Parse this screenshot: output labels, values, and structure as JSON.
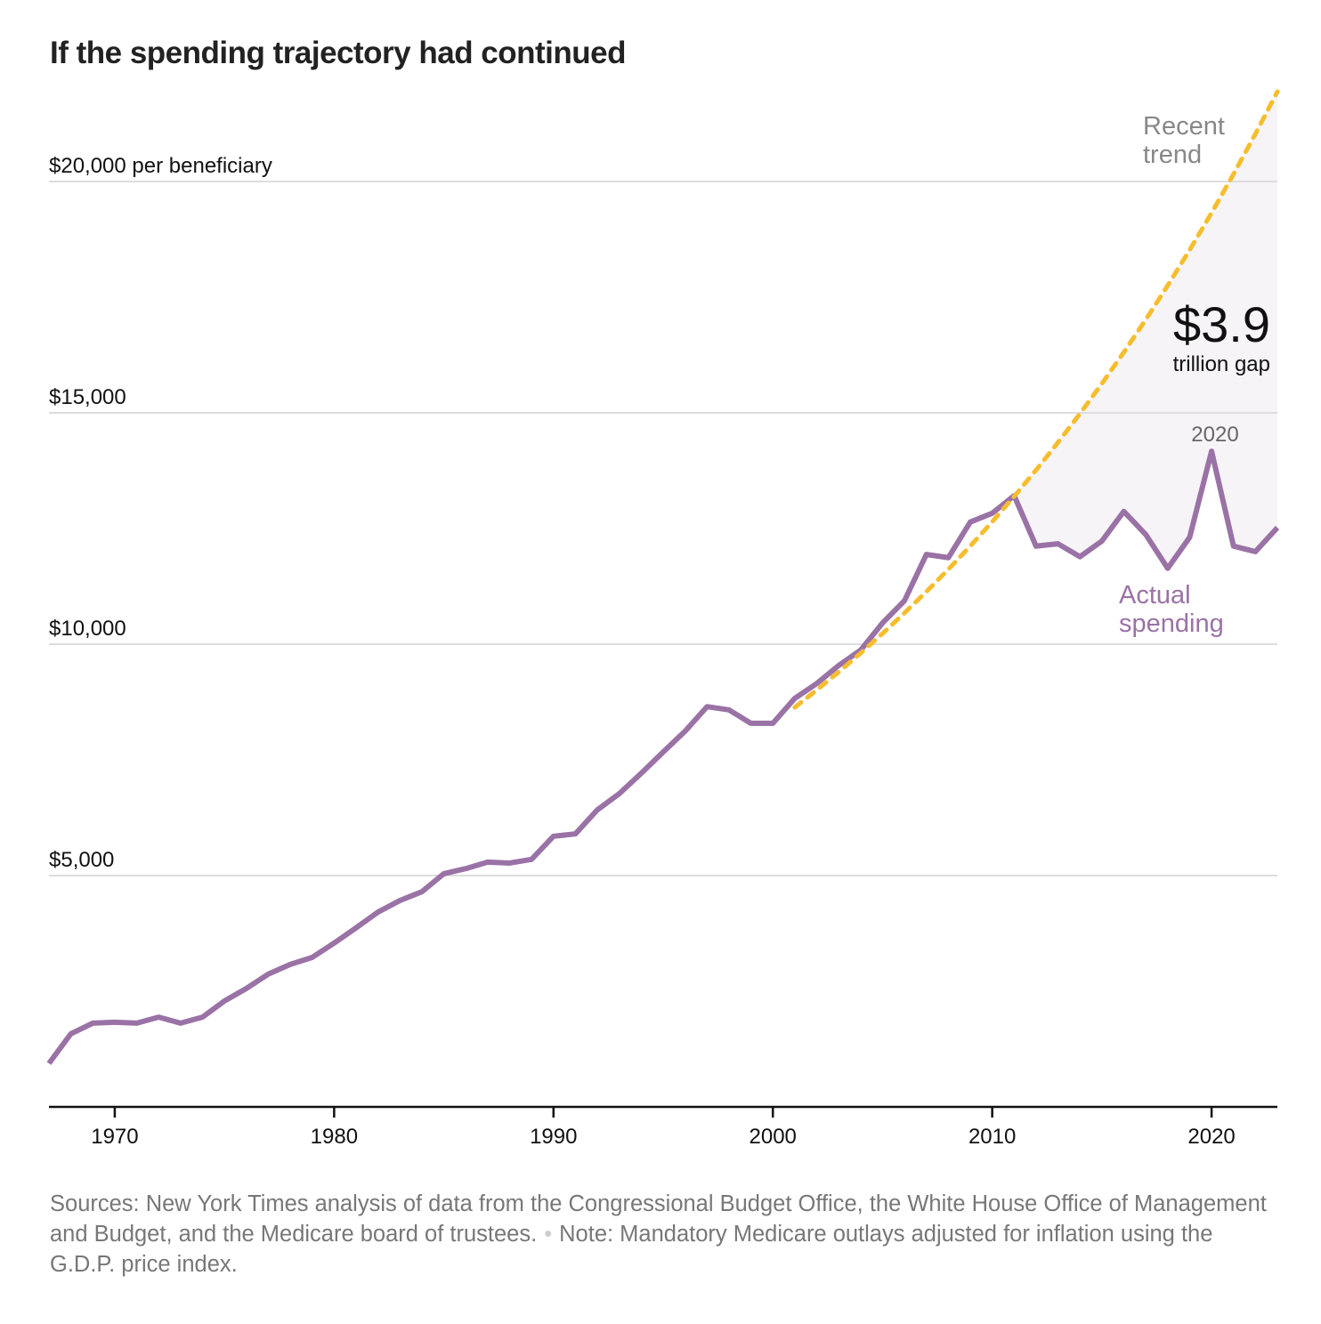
{
  "title": "If the spending trajectory had continued",
  "chart_data": {
    "type": "line",
    "title": "If the spending trajectory had continued",
    "ylabel": "$20,000 per beneficiary",
    "y_ticks": [
      {
        "value": 20000,
        "label": "$20,000 per beneficiary"
      },
      {
        "value": 15000,
        "label": "$15,000"
      },
      {
        "value": 10000,
        "label": "$10,000"
      },
      {
        "value": 5000,
        "label": "$5,000"
      }
    ],
    "x_ticks": [
      {
        "value": 1970,
        "label": "1970"
      },
      {
        "value": 1980,
        "label": "1980"
      },
      {
        "value": 1990,
        "label": "1990"
      },
      {
        "value": 2000,
        "label": "2000"
      },
      {
        "value": 2010,
        "label": "2010"
      },
      {
        "value": 2020,
        "label": "2020"
      }
    ],
    "xlim": [
      1967,
      2023
    ],
    "ylim": [
      0,
      22000
    ],
    "grid": true,
    "series": [
      {
        "name": "Actual spending",
        "color": "#9a72a6",
        "style": "solid",
        "x": [
          1967,
          1968,
          1969,
          1970,
          1971,
          1972,
          1973,
          1974,
          1975,
          1976,
          1977,
          1978,
          1979,
          1980,
          1981,
          1982,
          1983,
          1984,
          1985,
          1986,
          1987,
          1988,
          1989,
          1990,
          1991,
          1992,
          1993,
          1994,
          1995,
          1996,
          1997,
          1998,
          1999,
          2000,
          2001,
          2002,
          2003,
          2004,
          2005,
          2006,
          2007,
          2008,
          2009,
          2010,
          2011,
          2012,
          2013,
          2014,
          2015,
          2016,
          2017,
          2018,
          2019,
          2020,
          2021,
          2022,
          2023
        ],
        "values": [
          940,
          1580,
          1810,
          1830,
          1810,
          1940,
          1810,
          1940,
          2290,
          2560,
          2870,
          3080,
          3230,
          3540,
          3870,
          4210,
          4460,
          4650,
          5040,
          5150,
          5290,
          5270,
          5350,
          5850,
          5900,
          6420,
          6770,
          7210,
          7670,
          8120,
          8650,
          8580,
          8290,
          8290,
          8830,
          9150,
          9540,
          9870,
          10460,
          10940,
          11940,
          11870,
          12640,
          12830,
          13210,
          12120,
          12170,
          11890,
          12230,
          12870,
          12370,
          11640,
          12310,
          14170,
          12120,
          12000,
          12520
        ]
      },
      {
        "name": "Recent trend",
        "color": "#f7bd2c",
        "style": "dashed",
        "x": [
          2001,
          2002,
          2003,
          2004,
          2005,
          2006,
          2007,
          2008,
          2009,
          2010,
          2011,
          2012,
          2013,
          2014,
          2015,
          2016,
          2017,
          2018,
          2019,
          2020,
          2021,
          2022,
          2023
        ],
        "values": [
          8635,
          9009,
          9399,
          9806,
          10231,
          10674,
          11136,
          11618,
          12121,
          12646,
          13194,
          13765,
          14361,
          14983,
          15632,
          16309,
          17015,
          17752,
          18520,
          19322,
          20159,
          21031,
          21942
        ]
      }
    ],
    "gap_fill_color": "#f6f4f7",
    "annotations": {
      "trend_label_line1": "Recent",
      "trend_label_line2": "trend",
      "gap_value": "$3.9",
      "gap_label": "trillion gap",
      "peak_label": "2020",
      "actual_label_line1": "Actual",
      "actual_label_line2": "spending"
    }
  },
  "footer": {
    "sources": "Sources: New York Times analysis of data from the Congressional Budget Office, the White House Office of Management and Budget, and the Medicare board of trustees.",
    "separator": "•",
    "note": "Note: Mandatory Medicare outlays adjusted for inflation using the G.D.P. price index."
  }
}
